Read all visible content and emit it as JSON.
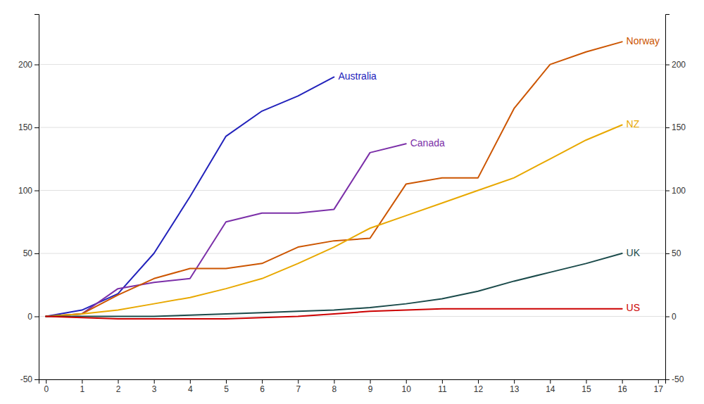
{
  "chart_data": {
    "type": "line",
    "x": [
      0,
      1,
      2,
      3,
      4,
      5,
      6,
      7,
      8,
      9,
      10,
      11,
      12,
      13,
      14,
      15,
      16,
      17
    ],
    "series": [
      {
        "name": "Australia",
        "color": "#2222bb",
        "values": [
          0,
          5,
          18,
          50,
          95,
          143,
          163,
          175,
          190,
          null,
          null,
          null,
          null,
          null,
          null,
          null,
          null,
          null
        ]
      },
      {
        "name": "Canada",
        "color": "#7b2fa8",
        "values": [
          0,
          2,
          22,
          27,
          30,
          75,
          82,
          82,
          85,
          130,
          137,
          null,
          null,
          null,
          null,
          null,
          null,
          null
        ]
      },
      {
        "name": "Norway",
        "color": "#cc5500",
        "values": [
          0,
          2,
          17,
          30,
          38,
          38,
          42,
          55,
          60,
          62,
          105,
          110,
          110,
          165,
          200,
          210,
          218,
          null
        ]
      },
      {
        "name": "NZ",
        "color": "#e8a800",
        "values": [
          0,
          2,
          5,
          10,
          15,
          22,
          30,
          42,
          55,
          70,
          80,
          90,
          100,
          110,
          125,
          140,
          152,
          null
        ]
      },
      {
        "name": "UK",
        "color": "#1a4a4a",
        "values": [
          0,
          0,
          0,
          0,
          1,
          2,
          3,
          4,
          5,
          7,
          10,
          14,
          20,
          28,
          35,
          42,
          50,
          null
        ]
      },
      {
        "name": "US",
        "color": "#cc0000",
        "values": [
          0,
          -1,
          -2,
          -2,
          -2,
          -2,
          -1,
          0,
          2,
          4,
          5,
          6,
          6,
          6,
          6,
          6,
          6,
          null
        ]
      }
    ],
    "xlim": [
      -0.2,
      17.2
    ],
    "ylim": [
      -50,
      240
    ],
    "xticks": [
      0,
      1,
      2,
      3,
      4,
      5,
      6,
      7,
      8,
      9,
      10,
      11,
      12,
      13,
      14,
      15,
      16,
      17
    ],
    "yticks": [
      -50,
      0,
      50,
      100,
      150,
      200
    ],
    "y2lim": [
      -50,
      240
    ],
    "y2ticks": [
      -50,
      0,
      50,
      100,
      150,
      200
    ],
    "grid": true
  }
}
